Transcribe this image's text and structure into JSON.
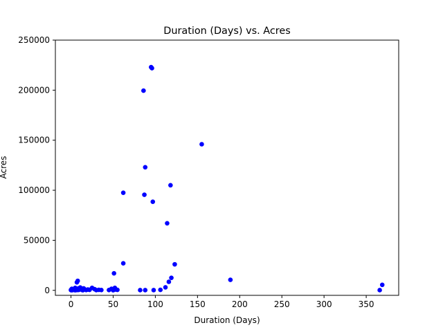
{
  "chart_data": {
    "type": "scatter",
    "title": "Duration (Days) vs. Acres",
    "xlabel": "Duration (Days)",
    "ylabel": "Acres",
    "xlim": [
      -18.5,
      388.5
    ],
    "ylim": [
      -5000,
      250000
    ],
    "xticks": [
      0,
      50,
      100,
      150,
      200,
      250,
      300,
      350
    ],
    "yticks": [
      0,
      50000,
      100000,
      150000,
      200000,
      250000
    ],
    "xtick_labels": [
      "0",
      "50",
      "100",
      "150",
      "200",
      "250",
      "300",
      "350"
    ],
    "ytick_labels": [
      "0",
      "50000",
      "100000",
      "150000",
      "200000",
      "250000"
    ],
    "grid": false,
    "legend": false,
    "marker_color": "#0000ff",
    "points": [
      [
        95,
        223000
      ],
      [
        96,
        222000
      ],
      [
        86,
        199500
      ],
      [
        155,
        146000
      ],
      [
        88,
        123000
      ],
      [
        118,
        105000
      ],
      [
        62,
        97500
      ],
      [
        87,
        95500
      ],
      [
        97,
        88500
      ],
      [
        114,
        67000
      ],
      [
        62,
        27000
      ],
      [
        123,
        26000
      ],
      [
        51,
        17000
      ],
      [
        119,
        12500
      ],
      [
        189,
        10500
      ],
      [
        116,
        8500
      ],
      [
        369,
        5500
      ],
      [
        112,
        3000
      ],
      [
        106,
        500
      ],
      [
        98,
        200
      ],
      [
        88,
        200
      ],
      [
        82,
        200
      ],
      [
        366,
        200
      ],
      [
        55,
        500
      ],
      [
        52,
        2500
      ],
      [
        48,
        1500
      ],
      [
        45,
        300
      ],
      [
        36,
        300
      ],
      [
        33,
        500
      ],
      [
        28,
        1200
      ],
      [
        25,
        2500
      ],
      [
        20,
        800
      ],
      [
        18,
        300
      ],
      [
        16,
        1200
      ],
      [
        15,
        2000
      ],
      [
        13,
        500
      ],
      [
        12,
        1500
      ],
      [
        11,
        2800
      ],
      [
        10,
        800
      ],
      [
        9,
        2000
      ],
      [
        8,
        9500
      ],
      [
        7,
        8000
      ],
      [
        7,
        300
      ],
      [
        6,
        1500
      ],
      [
        5,
        2500
      ],
      [
        4,
        500
      ],
      [
        3,
        1200
      ],
      [
        2,
        300
      ],
      [
        1,
        1500
      ],
      [
        0,
        500
      ],
      [
        0,
        200
      ],
      [
        1,
        100
      ],
      [
        3,
        800
      ],
      [
        5,
        100
      ],
      [
        9,
        400
      ],
      [
        14,
        100
      ],
      [
        22,
        500
      ],
      [
        30,
        200
      ],
      [
        50,
        100
      ],
      [
        53,
        800
      ]
    ]
  }
}
